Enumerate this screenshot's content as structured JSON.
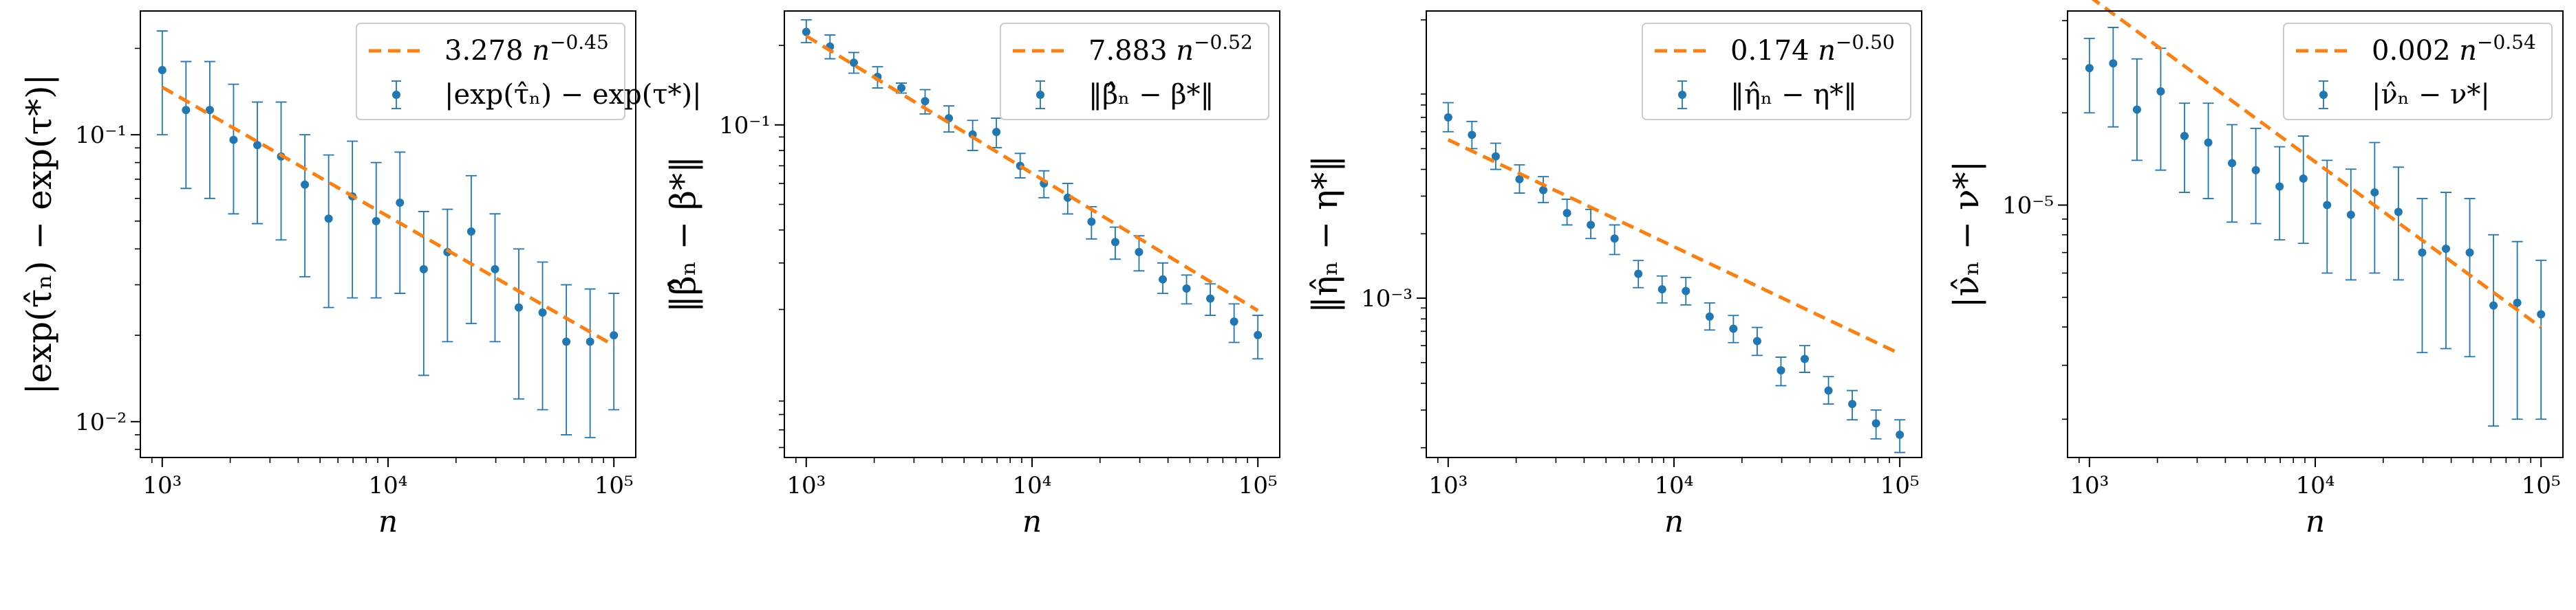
{
  "chart_data": [
    {
      "type": "scatter",
      "scale": "log-log",
      "xlabel": "n",
      "ylabel": "|exp(τ̂ₙ) − exp(τ*)|",
      "xlim": [
        800,
        125000
      ],
      "ylim": [
        0.0075,
        0.27
      ],
      "xticks": [
        {
          "value": 1000,
          "label": "10³"
        },
        {
          "value": 10000,
          "label": "10⁴"
        },
        {
          "value": 100000,
          "label": "10⁵"
        }
      ],
      "yticks": [
        {
          "value": 0.01,
          "label": "10⁻²"
        },
        {
          "value": 0.1,
          "label": "10⁻¹"
        }
      ],
      "grid": false,
      "legend_position": "top-right",
      "series": [
        {
          "name": "3.278 n^−0.45",
          "kind": "fit-line",
          "color": "#ff7f0e",
          "coef": 3.278,
          "exponent": -0.45
        },
        {
          "name": "|exp(τ̂ₙ) − exp(τ*)|",
          "kind": "errorbar",
          "color": "#1f77b4",
          "x": [
            1000,
            1274,
            1624,
            2069,
            2637,
            3360,
            4281,
            5456,
            6952,
            8859,
            11288,
            14384,
            18330,
            23357,
            29764,
            37927,
            48329,
            61585,
            78476,
            100000
          ],
          "y": [
            0.168,
            0.122,
            0.122,
            0.096,
            0.092,
            0.084,
            0.067,
            0.051,
            0.061,
            0.05,
            0.058,
            0.034,
            0.039,
            0.046,
            0.034,
            0.025,
            0.024,
            0.019,
            0.019,
            0.02
          ],
          "ylow": [
            0.1,
            0.065,
            0.06,
            0.053,
            0.049,
            0.043,
            0.032,
            0.025,
            0.027,
            0.027,
            0.028,
            0.0145,
            0.019,
            0.022,
            0.019,
            0.012,
            0.011,
            0.009,
            0.0088,
            0.011
          ],
          "yhigh": [
            0.23,
            0.18,
            0.18,
            0.15,
            0.13,
            0.13,
            0.1,
            0.085,
            0.095,
            0.08,
            0.087,
            0.054,
            0.055,
            0.072,
            0.053,
            0.04,
            0.036,
            0.03,
            0.029,
            0.028
          ]
        }
      ]
    },
    {
      "type": "scatter",
      "scale": "log-log",
      "xlabel": "n",
      "ylabel": "‖β̂ₙ − β*‖",
      "xlim": [
        800,
        125000
      ],
      "ylim": [
        0.0055,
        0.27
      ],
      "xticks": [
        {
          "value": 1000,
          "label": "10³"
        },
        {
          "value": 10000,
          "label": "10⁴"
        },
        {
          "value": 100000,
          "label": "10⁵"
        }
      ],
      "yticks": [
        {
          "value": 0.1,
          "label": "10⁻¹"
        }
      ],
      "grid": false,
      "legend_position": "top-right",
      "series": [
        {
          "name": "7.883 n^−0.52",
          "kind": "fit-line",
          "color": "#ff7f0e",
          "coef": 7.883,
          "exponent": -0.52
        },
        {
          "name": "‖β̂ₙ − β*‖",
          "kind": "errorbar",
          "color": "#1f77b4",
          "x": [
            1000,
            1274,
            1624,
            2069,
            2637,
            3360,
            4281,
            5456,
            6952,
            8859,
            11288,
            14384,
            18330,
            23357,
            29764,
            37927,
            48329,
            61585,
            78476,
            100000
          ],
          "y": [
            0.225,
            0.198,
            0.172,
            0.152,
            0.138,
            0.123,
            0.106,
            0.092,
            0.094,
            0.07,
            0.06,
            0.053,
            0.043,
            0.036,
            0.033,
            0.026,
            0.024,
            0.022,
            0.018,
            0.016
          ],
          "ylow": [
            0.205,
            0.178,
            0.157,
            0.138,
            0.132,
            0.11,
            0.094,
            0.08,
            0.082,
            0.063,
            0.053,
            0.046,
            0.037,
            0.031,
            0.028,
            0.023,
            0.021,
            0.019,
            0.015,
            0.013
          ],
          "yhigh": [
            0.25,
            0.219,
            0.188,
            0.166,
            0.144,
            0.136,
            0.118,
            0.104,
            0.106,
            0.078,
            0.067,
            0.06,
            0.049,
            0.041,
            0.038,
            0.03,
            0.027,
            0.025,
            0.021,
            0.019
          ]
        }
      ]
    },
    {
      "type": "scatter",
      "scale": "log-log",
      "xlabel": "n",
      "ylabel": "‖η̂ₙ − η*‖",
      "xlim": [
        800,
        125000
      ],
      "ylim": [
        0.00018,
        0.022
      ],
      "xticks": [
        {
          "value": 1000,
          "label": "10³"
        },
        {
          "value": 10000,
          "label": "10⁴"
        },
        {
          "value": 100000,
          "label": "10⁵"
        }
      ],
      "yticks": [
        {
          "value": 0.001,
          "label": "10⁻³"
        }
      ],
      "grid": false,
      "legend_position": "top-right",
      "series": [
        {
          "name": "0.174 n^−0.50",
          "kind": "fit-line",
          "color": "#ff7f0e",
          "coef": 0.174,
          "exponent": -0.5
        },
        {
          "name": "‖η̂ₙ − η*‖",
          "kind": "errorbar",
          "color": "#1f77b4",
          "x": [
            1000,
            1274,
            1624,
            2069,
            2637,
            3360,
            4281,
            5456,
            6952,
            8859,
            11288,
            14384,
            18330,
            23357,
            29764,
            37927,
            48329,
            61585,
            78476,
            100000
          ],
          "y": [
            0.007,
            0.0058,
            0.0046,
            0.0036,
            0.0032,
            0.0025,
            0.0022,
            0.0019,
            0.0013,
            0.0011,
            0.00108,
            0.00082,
            0.00072,
            0.00063,
            0.00046,
            0.00052,
            0.00037,
            0.00032,
            0.00026,
            0.00023
          ],
          "ylow": [
            0.006,
            0.005,
            0.004,
            0.0031,
            0.0028,
            0.0022,
            0.0019,
            0.0016,
            0.00112,
            0.00095,
            0.00093,
            0.00071,
            0.00062,
            0.00054,
            0.00039,
            0.00045,
            0.00032,
            0.00027,
            0.00022,
            0.00019
          ],
          "yhigh": [
            0.0082,
            0.0067,
            0.0053,
            0.0042,
            0.0037,
            0.0029,
            0.0026,
            0.0022,
            0.0015,
            0.00127,
            0.00125,
            0.00095,
            0.00083,
            0.00073,
            0.00053,
            0.0006,
            0.00043,
            0.00037,
            0.0003,
            0.00027
          ]
        }
      ]
    },
    {
      "type": "scatter",
      "scale": "log-log",
      "xlabel": "n",
      "ylabel": "|ν̂ₙ − ν*|",
      "xlim": [
        800,
        125000
      ],
      "ylim": [
        1.5e-06,
        4.3e-05
      ],
      "xticks": [
        {
          "value": 1000,
          "label": "10³"
        },
        {
          "value": 10000,
          "label": "10⁴"
        },
        {
          "value": 100000,
          "label": "10⁵"
        }
      ],
      "yticks": [
        {
          "value": 1e-05,
          "label": "10⁻⁵"
        }
      ],
      "grid": false,
      "legend_position": "top-right",
      "series": [
        {
          "name": "0.002 n^−0.54",
          "kind": "fit-line",
          "color": "#ff7f0e",
          "coef": 0.002,
          "exponent": -0.54
        },
        {
          "name": "|ν̂ₙ − ν*|",
          "kind": "errorbar",
          "color": "#1f77b4",
          "x": [
            1000,
            1274,
            1624,
            2069,
            2637,
            3360,
            4281,
            5456,
            6952,
            8859,
            11288,
            14384,
            18330,
            23357,
            29764,
            37927,
            48329,
            61585,
            78476,
            100000
          ],
          "y": [
            2.8e-05,
            2.9e-05,
            2.05e-05,
            2.35e-05,
            1.68e-05,
            1.6e-05,
            1.37e-05,
            1.3e-05,
            1.15e-05,
            1.22e-05,
            1e-05,
            9.3e-06,
            1.1e-05,
            9.5e-06,
            7e-06,
            7.2e-06,
            7e-06,
            4.7e-06,
            4.8e-06,
            4.4e-06
          ],
          "ylow": [
            2e-05,
            1.8e-05,
            1.4e-05,
            1.3e-05,
            1.1e-05,
            1.05e-05,
            8.8e-06,
            8.7e-06,
            7.7e-06,
            7.5e-06,
            6e-06,
            5.7e-06,
            6e-06,
            5.7e-06,
            3.3e-06,
            3.4e-06,
            3.2e-06,
            1.9e-06,
            2e-06,
            2e-06
          ],
          "yhigh": [
            3.5e-05,
            3.8e-05,
            3e-05,
            3.25e-05,
            2.15e-05,
            2.15e-05,
            1.83e-05,
            1.78e-05,
            1.55e-05,
            1.68e-05,
            1.4e-05,
            1.31e-05,
            1.6e-05,
            1.33e-05,
            1.05e-05,
            1.1e-05,
            1.05e-05,
            8e-06,
            7.6e-06,
            6.6e-06
          ]
        }
      ]
    }
  ]
}
